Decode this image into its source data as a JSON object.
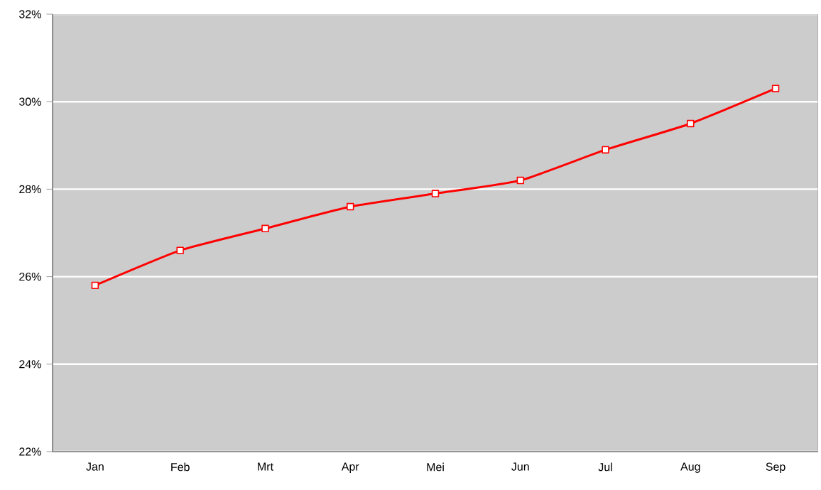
{
  "chart_data": {
    "type": "line",
    "categories": [
      "Jan",
      "Feb",
      "Mrt",
      "Apr",
      "Mei",
      "Jun",
      "Jul",
      "Aug",
      "Sep"
    ],
    "series": [
      {
        "color": "#ff0000",
        "values": [
          25.8,
          26.6,
          27.1,
          27.6,
          27.9,
          28.2,
          28.9,
          29.5,
          30.3
        ]
      }
    ],
    "ylim": [
      22,
      32
    ],
    "yticks": [
      {
        "value": 22,
        "label": "22%"
      },
      {
        "value": 24,
        "label": "24%"
      },
      {
        "value": 26,
        "label": "26%"
      },
      {
        "value": 28,
        "label": "28%"
      },
      {
        "value": 30,
        "label": "30%"
      },
      {
        "value": 32,
        "label": "32%"
      }
    ],
    "grid": "y",
    "marker": "square",
    "line_style": "solid"
  }
}
